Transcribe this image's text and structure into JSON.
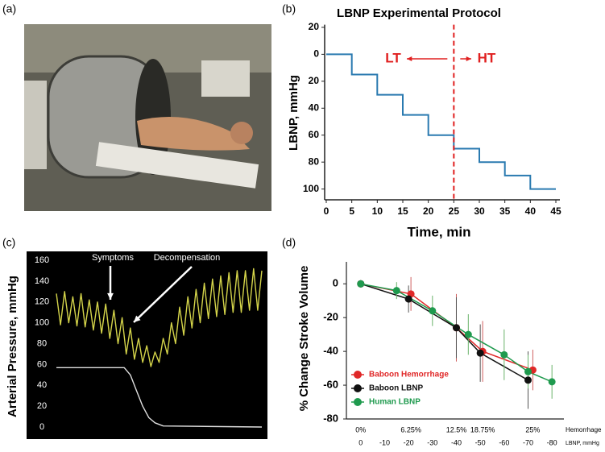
{
  "chart_data": [
    {
      "type": "image",
      "panel": "(a)"
    },
    {
      "type": "step",
      "panel": "(b)",
      "title": "LBNP Experimental Protocol",
      "x_label": "Time, min",
      "y_label": "LBNP, mmHg",
      "xlim": [
        0,
        45
      ],
      "xticks": [
        0,
        5,
        10,
        15,
        20,
        25,
        30,
        35,
        40,
        45
      ],
      "ylim": [
        -22,
        108
      ],
      "y_inverted": true,
      "yticks": [
        {
          "value": -20,
          "label": "20"
        },
        0,
        20,
        40,
        60,
        80,
        100
      ],
      "series": [
        {
          "color": "#2a7ab0",
          "x": [
            0,
            5,
            5,
            10,
            10,
            15,
            15,
            20,
            20,
            25,
            25,
            30,
            30,
            35,
            35,
            40,
            40,
            45
          ],
          "values": [
            0,
            0,
            15,
            15,
            30,
            30,
            45,
            45,
            60,
            60,
            70,
            70,
            80,
            80,
            90,
            90,
            100,
            100
          ]
        }
      ],
      "vline": {
        "x": 25,
        "color": "#e02020"
      },
      "annotations": [
        {
          "text": "LT",
          "color": "#e02020"
        },
        {
          "text": "HT",
          "color": "#e02020"
        }
      ]
    },
    {
      "type": "line",
      "panel": "(c)",
      "y_label": "Arterial Pressure, mmHg",
      "background": "#000000",
      "xlim": [
        0,
        100
      ],
      "ylim": [
        0,
        160
      ],
      "yticks": [
        0,
        20,
        40,
        60,
        80,
        100,
        120,
        140,
        160
      ],
      "series": [
        {
          "color": "#d4d44a",
          "x": [
            0,
            2,
            4,
            6,
            8,
            10,
            12,
            14,
            16,
            18,
            20,
            22,
            24,
            26,
            28,
            30,
            32,
            34,
            36,
            38,
            40,
            42,
            44,
            46,
            48,
            50,
            52,
            54,
            56,
            58,
            60,
            62,
            64,
            66,
            68,
            70,
            72,
            74,
            76,
            78,
            80,
            82,
            84,
            86,
            88,
            90,
            92,
            94,
            96,
            98,
            100
          ],
          "values": [
            128,
            98,
            130,
            100,
            125,
            97,
            128,
            96,
            122,
            93,
            120,
            90,
            118,
            85,
            112,
            80,
            105,
            70,
            95,
            65,
            85,
            62,
            78,
            58,
            72,
            62,
            85,
            70,
            100,
            80,
            115,
            88,
            125,
            95,
            132,
            100,
            138,
            104,
            142,
            106,
            145,
            108,
            148,
            110,
            150,
            110,
            150,
            112,
            152,
            112,
            150
          ]
        },
        {
          "color": "#e0e0e0",
          "x": [
            0,
            33,
            36,
            39,
            42,
            45,
            48,
            52,
            100
          ],
          "values": [
            57,
            57,
            50,
            35,
            20,
            9,
            4,
            1,
            0
          ]
        }
      ],
      "annotations": [
        {
          "text": "Symptoms",
          "color": "#ffffff"
        },
        {
          "text": "Decompensation",
          "color": "#ffffff"
        }
      ]
    },
    {
      "type": "errorbar",
      "panel": "(d)",
      "y_label": "% Change Stroke Volume",
      "x_label": "LBNP, mmHg",
      "xlim": [
        6,
        -85
      ],
      "xticks": [
        0,
        -10,
        -20,
        -30,
        -40,
        -50,
        -60,
        -70,
        -80
      ],
      "ylim": [
        -80,
        13
      ],
      "yticks": [
        0,
        -20,
        -40,
        -60,
        -80
      ],
      "x2_label": "Hemorrhage",
      "x2ticks": [
        {
          "value": 0,
          "label": "0%"
        },
        {
          "value": 6.25,
          "label": "6.25%"
        },
        {
          "value": 12.5,
          "label": "12.5%"
        },
        {
          "value": 18.75,
          "label": "18.75%"
        },
        {
          "value": 25,
          "label": "25%"
        }
      ],
      "x2_at": [
        0,
        -21,
        -40,
        -51,
        -72
      ],
      "legend": "lower left",
      "series": [
        {
          "name": "Baboon Hemorrhage",
          "color": "#e02828",
          "axis": "x2",
          "x": [
            0,
            6.25,
            12.5,
            18.75,
            25
          ],
          "values": [
            0,
            -6,
            -26,
            -40,
            -51
          ],
          "errors": [
            0,
            10,
            20,
            18,
            12
          ]
        },
        {
          "name": "Baboon LBNP",
          "color": "#111111",
          "x": [
            0,
            -20,
            -40,
            -50,
            -70
          ],
          "values": [
            0,
            -9,
            -26,
            -41,
            -57
          ],
          "errors": [
            0,
            8,
            18,
            17,
            17
          ]
        },
        {
          "name": "Human LBNP",
          "color": "#1f9a4e",
          "x": [
            0,
            -15,
            -30,
            -45,
            -60,
            -70,
            -80
          ],
          "values": [
            0,
            -4,
            -16,
            -30,
            -42,
            -52,
            -58
          ],
          "errors": [
            0,
            5,
            9,
            12,
            15,
            10,
            10
          ]
        }
      ]
    }
  ]
}
